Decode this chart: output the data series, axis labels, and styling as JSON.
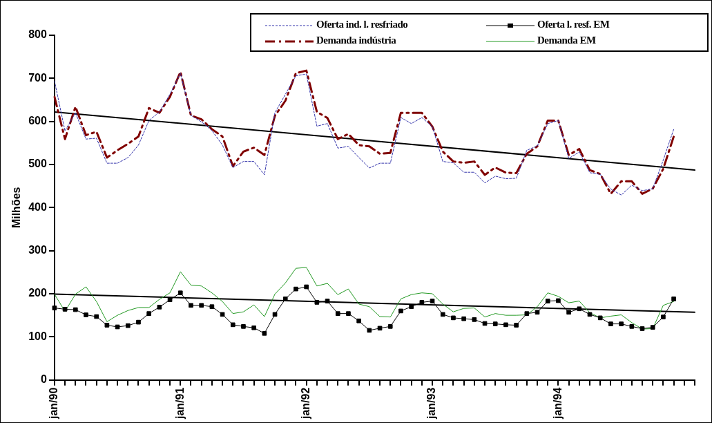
{
  "chart_data": {
    "type": "line",
    "ylabel": "Milhões",
    "categories": [
      "jan/90",
      null,
      null,
      null,
      null,
      null,
      null,
      null,
      null,
      null,
      null,
      null,
      "jan/91",
      null,
      null,
      null,
      null,
      null,
      null,
      null,
      null,
      null,
      null,
      null,
      "jan/92",
      null,
      null,
      null,
      null,
      null,
      null,
      null,
      null,
      null,
      null,
      null,
      "jan/93",
      null,
      null,
      null,
      null,
      null,
      null,
      null,
      null,
      null,
      null,
      null,
      "jan/94",
      null,
      null,
      null,
      null,
      null,
      null,
      null,
      null,
      null,
      null,
      null,
      null,
      null
    ],
    "ylim": [
      0,
      800
    ],
    "yticks": [
      0,
      100,
      200,
      300,
      400,
      500,
      600,
      700,
      800
    ],
    "grid": false,
    "legend": "top right",
    "series": [
      {
        "name": "Oferta ind. l. resfriado",
        "color": "#3333aa",
        "line_style": "dotted",
        "marker": "none",
        "values": [
          694,
          578,
          620,
          559,
          561,
          503,
          503,
          516,
          545,
          602,
          622,
          663,
          712,
          614,
          599,
          579,
          545,
          493,
          507,
          507,
          476,
          620,
          663,
          706,
          710,
          589,
          595,
          538,
          542,
          516,
          492,
          503,
          503,
          609,
          595,
          609,
          588,
          507,
          504,
          482,
          482,
          457,
          473,
          467,
          468,
          533,
          543,
          595,
          602,
          514,
          529,
          481,
          477,
          443,
          429,
          452,
          439,
          444,
          510,
          582,
          null,
          null
        ]
      },
      {
        "name": "Oferta l. resf. EM",
        "color": "#000000",
        "line_style": "solid",
        "marker": "square",
        "values": [
          167,
          164,
          163,
          151,
          147,
          127,
          123,
          126,
          134,
          154,
          169,
          186,
          202,
          173,
          173,
          170,
          152,
          128,
          124,
          121,
          108,
          152,
          188,
          211,
          216,
          180,
          183,
          154,
          154,
          137,
          115,
          120,
          124,
          160,
          170,
          180,
          183,
          152,
          144,
          142,
          140,
          131,
          130,
          128,
          127,
          154,
          157,
          183,
          184,
          157,
          165,
          152,
          144,
          130,
          130,
          124,
          119,
          122,
          146,
          188,
          null,
          null
        ]
      },
      {
        "name": "Demanda indústria",
        "color": "#800000",
        "line_style": "dashed",
        "marker": "none",
        "values": [
          657,
          559,
          634,
          568,
          576,
          516,
          533,
          548,
          565,
          631,
          620,
          657,
          715,
          614,
          605,
          582,
          565,
          496,
          530,
          539,
          522,
          613,
          648,
          712,
          718,
          622,
          608,
          559,
          571,
          545,
          542,
          525,
          527,
          620,
          620,
          620,
          588,
          530,
          507,
          504,
          507,
          476,
          493,
          481,
          480,
          525,
          542,
          602,
          602,
          522,
          536,
          487,
          478,
          432,
          461,
          461,
          432,
          444,
          490,
          565,
          null,
          null
        ]
      },
      {
        "name": "Demanda EM",
        "color": "#229922",
        "line_style": "solid",
        "marker": "none",
        "values": [
          199,
          159,
          199,
          216,
          182,
          135,
          150,
          161,
          168,
          168,
          187,
          202,
          251,
          220,
          218,
          202,
          182,
          154,
          158,
          174,
          147,
          199,
          225,
          259,
          261,
          218,
          224,
          198,
          211,
          176,
          170,
          147,
          146,
          188,
          198,
          202,
          200,
          176,
          158,
          166,
          167,
          146,
          154,
          150,
          150,
          151,
          170,
          202,
          194,
          179,
          183,
          156,
          144,
          148,
          151,
          133,
          118,
          119,
          173,
          182,
          null,
          null
        ]
      },
      {
        "color": "#000000",
        "line_style": "solid",
        "marker": "none",
        "values": [
          622,
          null,
          null,
          null,
          null,
          null,
          null,
          null,
          null,
          null,
          null,
          null,
          null,
          null,
          null,
          null,
          null,
          null,
          null,
          null,
          null,
          null,
          null,
          null,
          null,
          null,
          null,
          null,
          null,
          null,
          null,
          null,
          null,
          null,
          null,
          null,
          null,
          null,
          null,
          null,
          null,
          null,
          null,
          null,
          null,
          null,
          null,
          null,
          null,
          null,
          null,
          null,
          null,
          null,
          null,
          null,
          null,
          null,
          null,
          null,
          null,
          487
        ]
      },
      {
        "color": "#000000",
        "line_style": "solid",
        "marker": "none",
        "values": [
          199,
          null,
          null,
          null,
          null,
          null,
          null,
          null,
          null,
          null,
          null,
          null,
          null,
          null,
          null,
          null,
          null,
          null,
          null,
          null,
          null,
          null,
          null,
          null,
          null,
          null,
          null,
          null,
          null,
          null,
          null,
          null,
          null,
          null,
          null,
          null,
          null,
          null,
          null,
          null,
          null,
          null,
          null,
          null,
          null,
          null,
          null,
          null,
          null,
          null,
          null,
          null,
          null,
          null,
          null,
          null,
          null,
          null,
          null,
          null,
          null,
          157
        ]
      }
    ]
  }
}
